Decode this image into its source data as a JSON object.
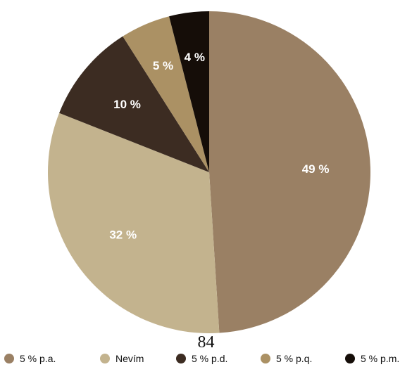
{
  "chart_data": {
    "type": "pie",
    "start_angle_deg": 0,
    "direction": "clockwise",
    "slices": [
      {
        "label": "5 % p.a.",
        "value": 49,
        "display": "49 %",
        "color": "#9a8064"
      },
      {
        "label": "Nevím",
        "value": 32,
        "display": "32 %",
        "color": "#c3b38e"
      },
      {
        "label": "5 % p.d.",
        "value": 10,
        "display": "10 %",
        "color": "#3c2c22"
      },
      {
        "label": "5 % p.q.",
        "value": 5,
        "display": "5 %",
        "color": "#ab9164"
      },
      {
        "label": "5 % p.m.",
        "value": 4,
        "display": "4 %",
        "color": "#150d08"
      }
    ]
  },
  "page": {
    "number": "84"
  }
}
